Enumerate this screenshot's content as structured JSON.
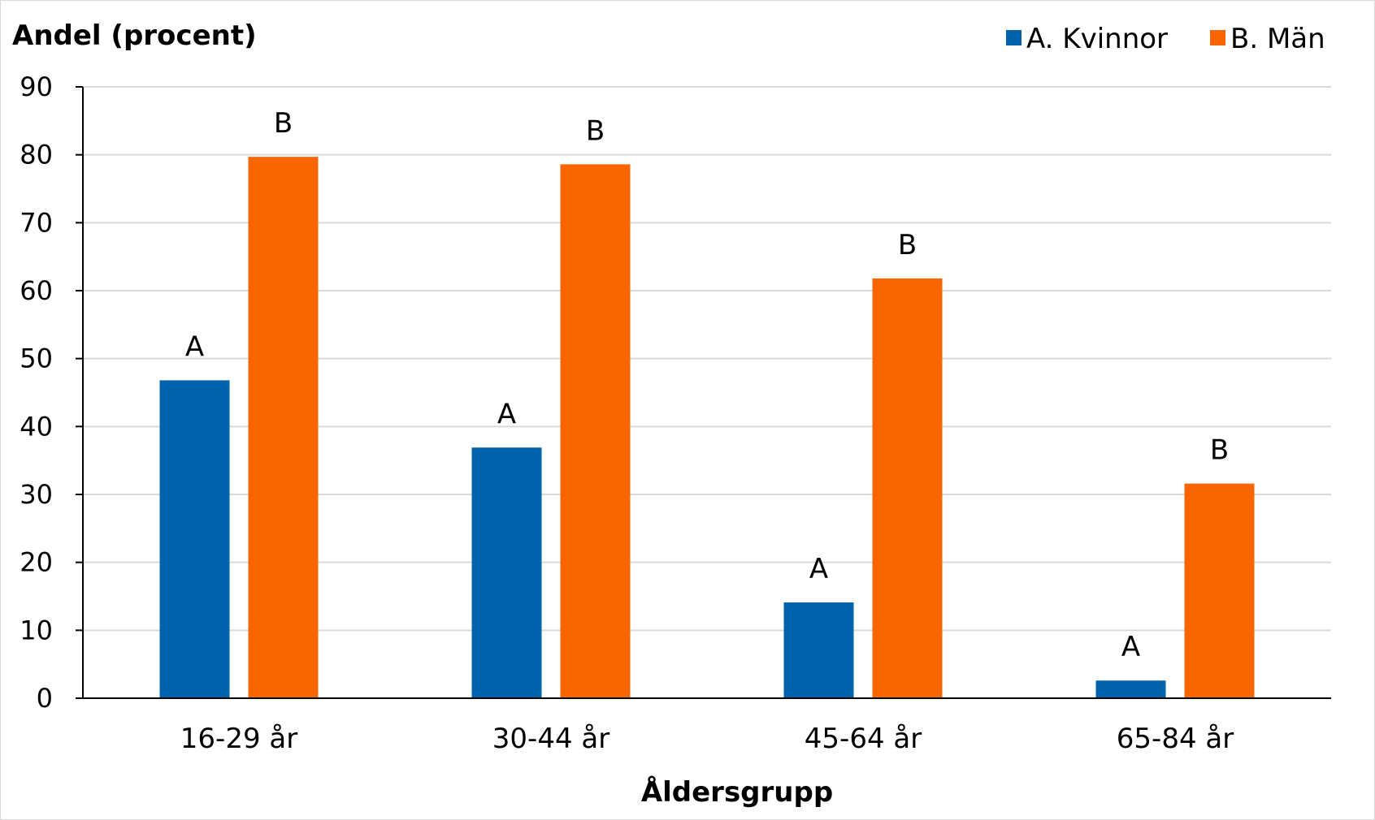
{
  "chart_data": {
    "type": "bar",
    "ylabel": "Andel (procent)",
    "xlabel": "Åldersgrupp",
    "ylim": [
      0,
      90
    ],
    "yticks": [
      0,
      10,
      20,
      30,
      40,
      50,
      60,
      70,
      80,
      90
    ],
    "grid": true,
    "legend_position": "top-right",
    "categories": [
      "16-29 år",
      "30-44 år",
      "45-64 år",
      "65-84 år"
    ],
    "series": [
      {
        "name": "A. Kvinnor",
        "color": "#0063ac",
        "bar_label": "A",
        "values": [
          46.8,
          36.9,
          14.1,
          2.6
        ]
      },
      {
        "name": "B. Män",
        "color": "#f96500",
        "bar_label": "B",
        "values": [
          79.7,
          78.6,
          61.8,
          31.6
        ]
      }
    ]
  }
}
